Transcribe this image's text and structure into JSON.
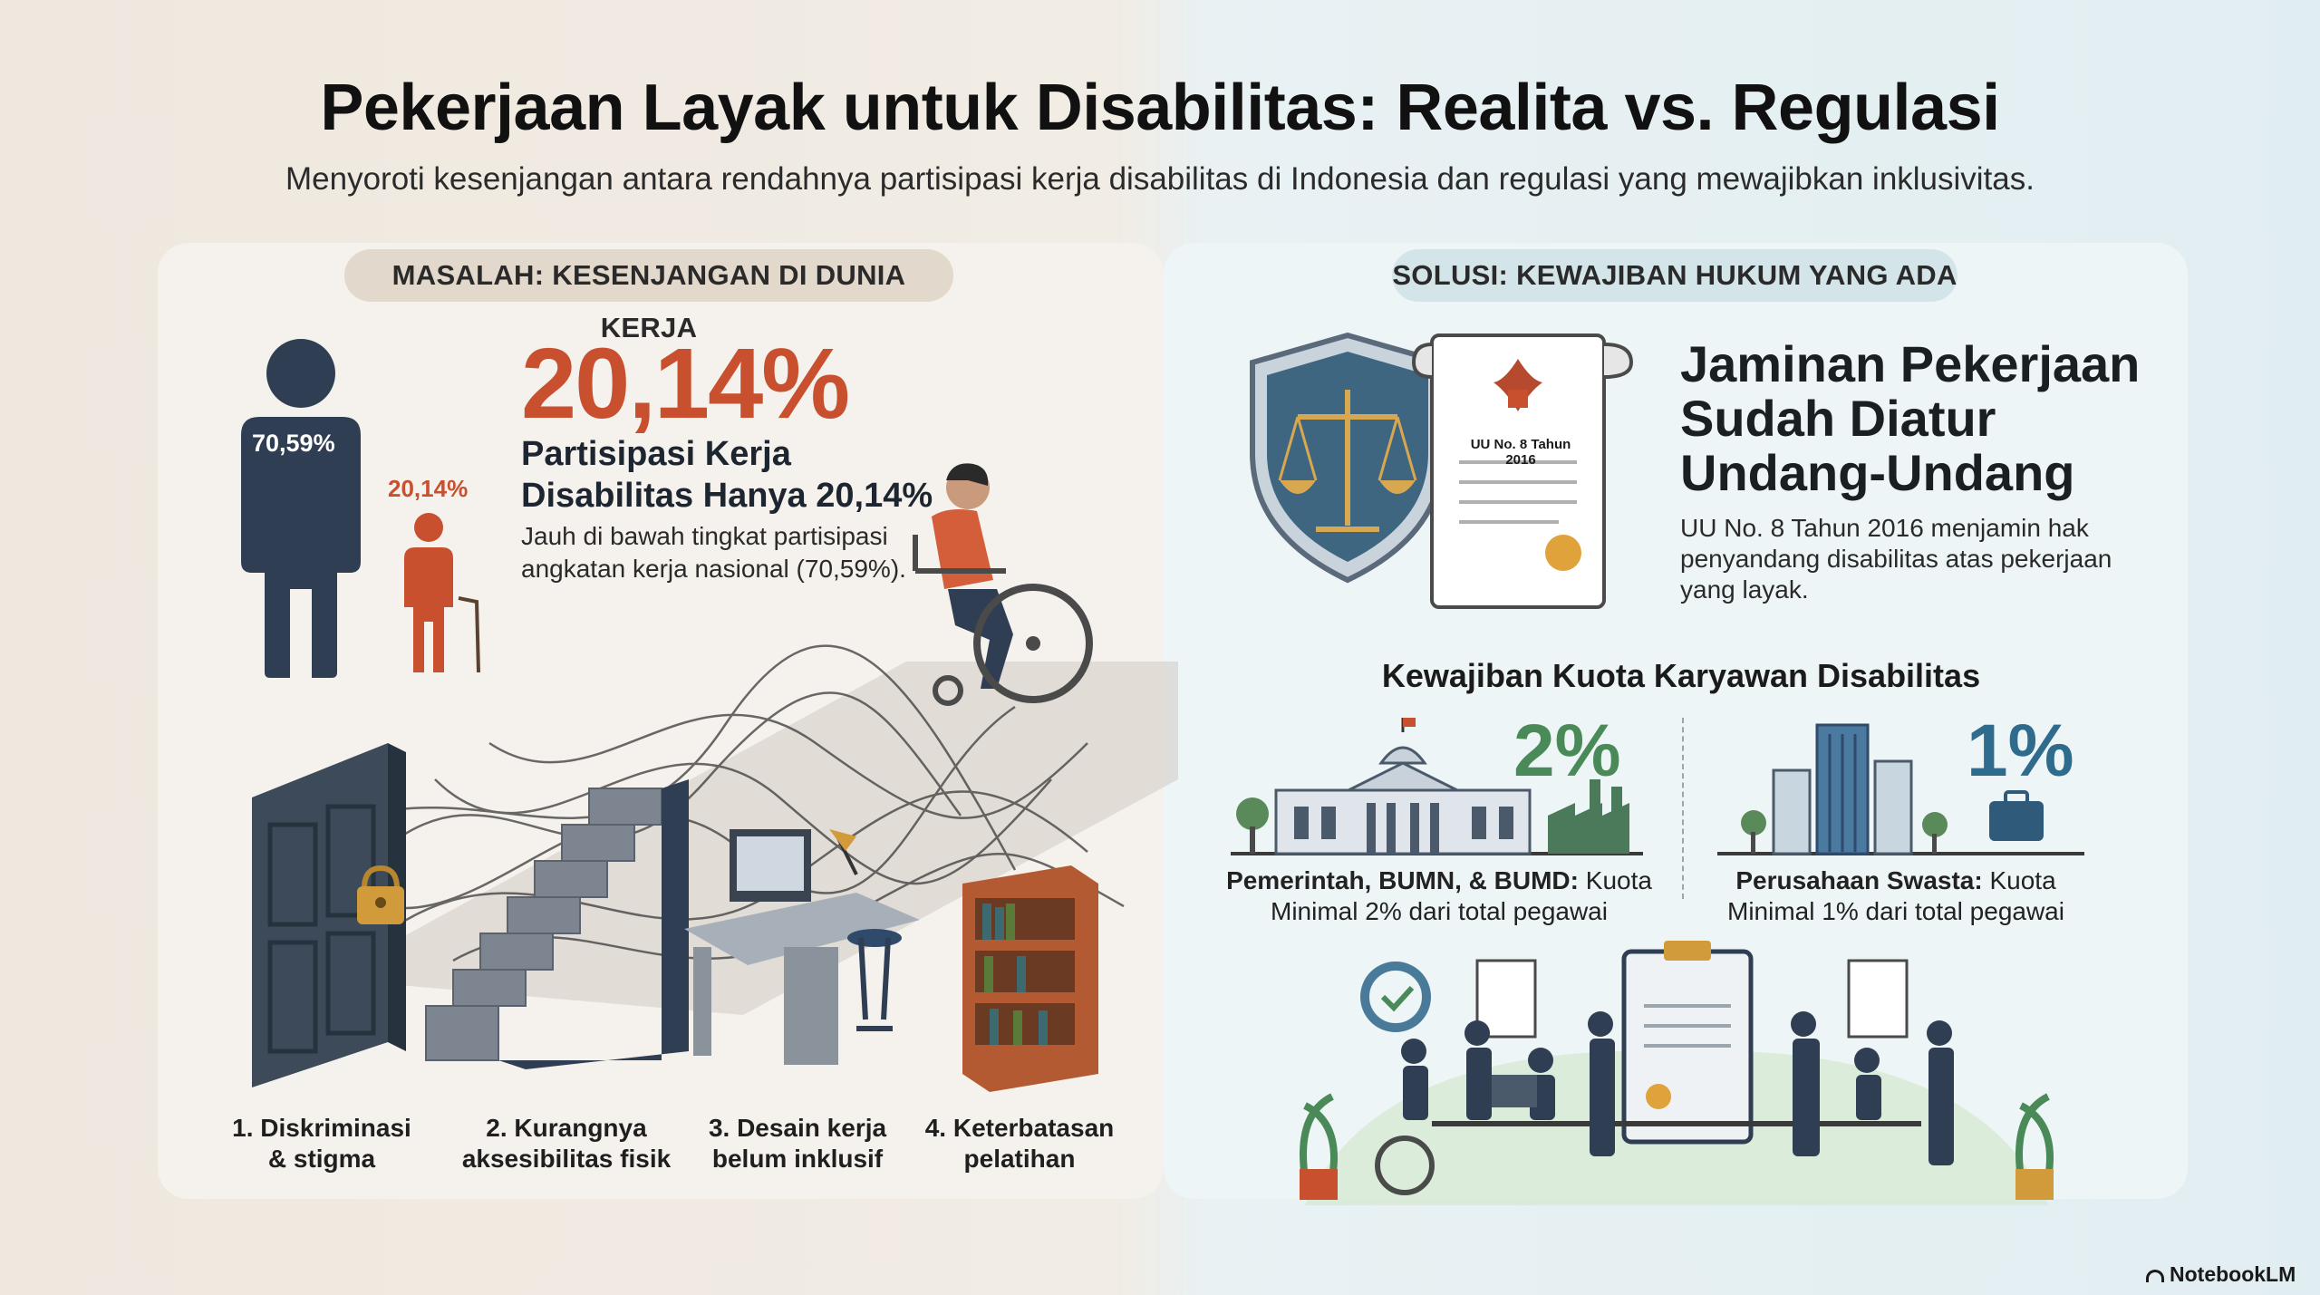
{
  "header": {
    "title": "Pekerjaan Layak untuk Disabilitas: Realita vs. Regulasi",
    "subtitle": "Menyoroti kesenjangan antara rendahnya partisipasi kerja disabilitas di Indonesia dan regulasi yang mewajibkan inklusivitas."
  },
  "problem": {
    "pill": "MASALAH: KESENJANGAN DI DUNIA KERJA",
    "figure_national_label": "70,59%",
    "figure_disabled_label": "20,14%",
    "big_percent": "20,14%",
    "headline_line1": "Partisipasi Kerja",
    "headline_line2": "Disabilitas Hanya 20,14%",
    "description_line1": "Jauh di bawah tingkat partisipasi",
    "description_line2": "angkatan kerja nasional (70,59%).",
    "barriers": [
      {
        "line1": "1. Diskriminasi",
        "line2": "& stigma"
      },
      {
        "line1": "2. Kurangnya",
        "line2": "aksesibilitas fisik"
      },
      {
        "line1": "3. Desain kerja",
        "line2": "belum inklusif"
      },
      {
        "line1": "4. Keterbatasan",
        "line2": "pelatihan"
      }
    ]
  },
  "solution": {
    "pill": "SOLUSI: KEWAJIBAN HUKUM YANG ADA",
    "document_label": "UU No. 8 Tahun 2016",
    "headline_line1": "Jaminan Pekerjaan",
    "headline_line2": "Sudah Diatur",
    "headline_line3": "Undang-Undang",
    "description_line1": "UU No. 8 Tahun 2016 menjamin hak",
    "description_line2": "penyandang disabilitas atas pekerjaan",
    "description_line3": "yang layak.",
    "quota_title": "Kewajiban Kuota Karyawan Disabilitas",
    "quotas": [
      {
        "percent": "2%",
        "bold": "Pemerintah, BUMN, & BUMD:",
        "rest": "Kuota",
        "line2": "Minimal 2% dari total pegawai",
        "color": "#4a8a58"
      },
      {
        "percent": "1%",
        "bold": "Perusahaan Swasta:",
        "rest": "Kuota",
        "line2": "Minimal 1% dari total pegawai",
        "color": "#2f6b8c"
      }
    ]
  },
  "brand": "NotebookLM",
  "colors": {
    "accent_red": "#c8502f",
    "navy": "#2f3e52",
    "green": "#4a8a58",
    "blue": "#2f6b8c"
  }
}
